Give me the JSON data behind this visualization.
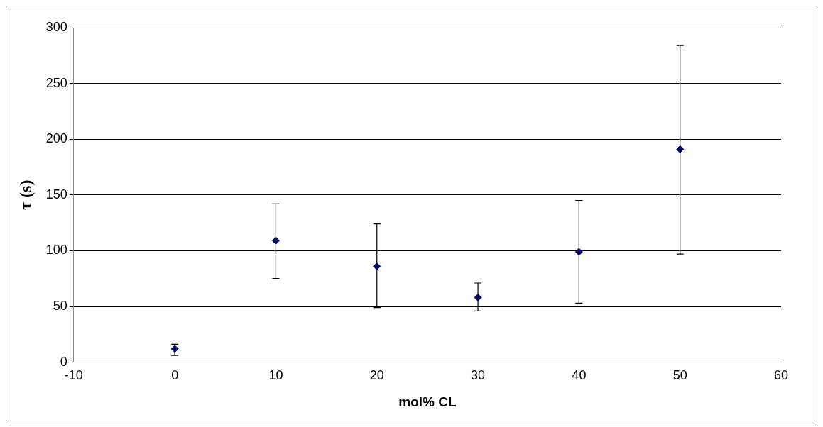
{
  "chart_data": {
    "type": "scatter",
    "xlabel": "mol% CL",
    "ylabel": "τ (s)",
    "x": [
      0,
      10,
      20,
      30,
      40,
      50
    ],
    "values": [
      12,
      109,
      86,
      58,
      99,
      191
    ],
    "errors": [
      [
        6,
        16
      ],
      [
        75,
        142
      ],
      [
        49,
        124
      ],
      [
        46,
        71
      ],
      [
        53,
        145
      ],
      [
        97,
        284
      ]
    ],
    "color": "#000080",
    "marker": "diamond",
    "xlim": [
      -10,
      60
    ],
    "xticks": [
      -10,
      0,
      10,
      20,
      30,
      40,
      50,
      60
    ],
    "ylim": [
      0,
      300
    ],
    "yticks": [
      0,
      50,
      100,
      150,
      200,
      250,
      300
    ],
    "grid": "y",
    "legend": false
  }
}
